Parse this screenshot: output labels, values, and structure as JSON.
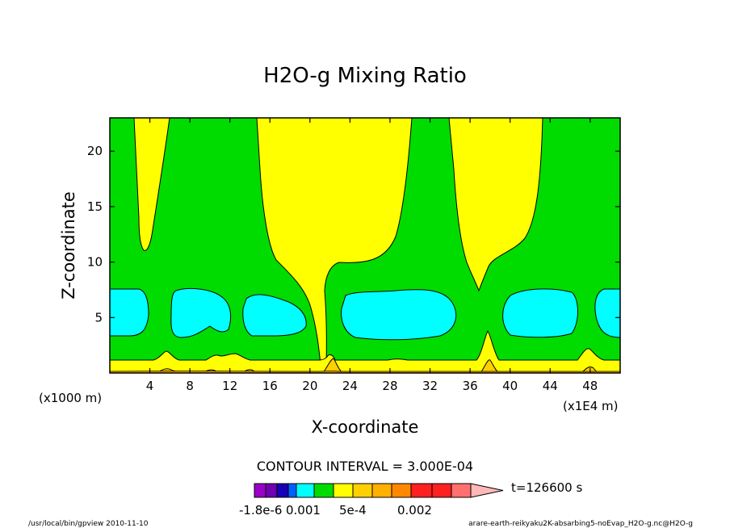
{
  "chart_data": {
    "type": "heatmap",
    "title": "H2O-g Mixing Ratio",
    "xlabel": "X-coordinate",
    "ylabel": "Z-coordinate",
    "x_unit_left": "(x1000 m)",
    "x_unit_right": "(x1E4 m)",
    "xlim": [
      0,
      51
    ],
    "ylim": [
      0,
      23
    ],
    "x_ticks": [
      "4",
      "8",
      "12",
      "16",
      "20",
      "24",
      "28",
      "32",
      "36",
      "40",
      "44",
      "48"
    ],
    "x_tick_values": [
      4,
      8,
      12,
      16,
      20,
      24,
      28,
      32,
      36,
      40,
      44,
      48
    ],
    "y_ticks": [
      "5",
      "10",
      "15",
      "20"
    ],
    "y_tick_values": [
      5,
      10,
      15,
      20
    ],
    "contour_interval_label": "CONTOUR INTERVAL = 3.000E-04",
    "time_label": "t=126600 s",
    "colorbar_labels": [
      "-1.8e-6",
      "0.001",
      "5e-4",
      "0.002"
    ],
    "colorbar_colors": [
      "#9a00c8",
      "#7000b0",
      "#1800b8",
      "#0060ff",
      "#00ffff",
      "#00dc00",
      "#ffff00",
      "#ffd000",
      "#ffb000",
      "#ff8800",
      "#ff2020",
      "#ff2020",
      "#ff7070",
      "#ffb8b8"
    ],
    "field_colors": {
      "green": "#00dc00",
      "cyan": "#00ffff",
      "yellow": "#ffff00",
      "gold": "#ffd000",
      "orange": "#ffa000"
    },
    "footer_left": "/usr/local/bin/gpview  2010-11-10",
    "footer_right": "arare-earth-reikyaku2K-absarbing5-noEvap_H2O-g.nc@H2O-g",
    "regions": {
      "cyan": [
        {
          "x": [
            0,
            3.8
          ],
          "z": [
            3.3,
            7.6
          ]
        },
        {
          "x": [
            6.2,
            11.8
          ],
          "z": [
            3.2,
            7.6
          ]
        },
        {
          "x": [
            13.2,
            19.8
          ],
          "z": [
            3.2,
            7.2
          ]
        },
        {
          "x": [
            23.2,
            35.2
          ],
          "z": [
            3.2,
            7.6
          ]
        },
        {
          "x": [
            38.8,
            46.4
          ],
          "z": [
            3.2,
            7.6
          ]
        },
        {
          "x": [
            48.6,
            51
          ],
          "z": [
            3.2,
            7.6
          ]
        }
      ],
      "yellow_surface_top_z": 1.3
    }
  }
}
